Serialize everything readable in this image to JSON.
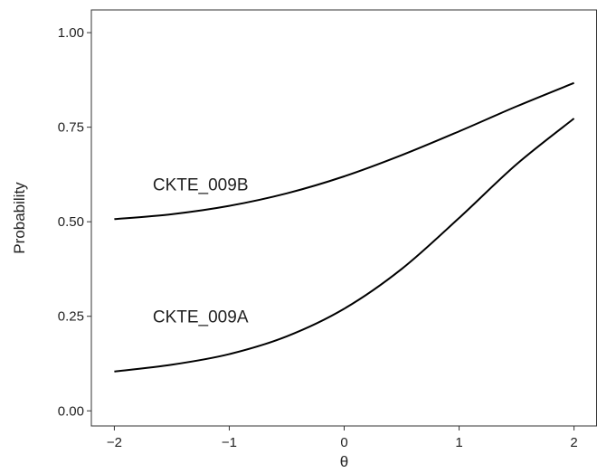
{
  "chart_data": {
    "type": "line",
    "title": "",
    "xlabel": "θ",
    "ylabel": "Probability",
    "xlim": [
      -2.2,
      2.2
    ],
    "ylim": [
      -0.04,
      1.06
    ],
    "x_ticks": [
      -2,
      -1,
      0,
      1,
      2
    ],
    "x_tick_labels": [
      "−2",
      "−1",
      "0",
      "1",
      "2"
    ],
    "y_ticks": [
      0,
      0.25,
      0.5,
      0.75,
      1
    ],
    "y_tick_labels": [
      "0.00",
      "0.25",
      "0.50",
      "0.75",
      "1.00"
    ],
    "grid": false,
    "legend": "none",
    "line_color": "#000000",
    "series": [
      {
        "name": "CKTE_009B",
        "label_at": [
          -1.25,
          0.6
        ],
        "x": [
          -2,
          -1.5,
          -1,
          -0.5,
          0,
          0.5,
          1,
          1.5,
          2
        ],
        "y": [
          0.507,
          0.52,
          0.542,
          0.575,
          0.62,
          0.676,
          0.739,
          0.805,
          0.867
        ]
      },
      {
        "name": "CKTE_009A",
        "label_at": [
          -1.25,
          0.25
        ],
        "x": [
          -2,
          -1.5,
          -1,
          -0.5,
          0,
          0.5,
          1,
          1.5,
          2
        ],
        "y": [
          0.104,
          0.122,
          0.15,
          0.197,
          0.27,
          0.375,
          0.51,
          0.652,
          0.773
        ]
      }
    ]
  }
}
